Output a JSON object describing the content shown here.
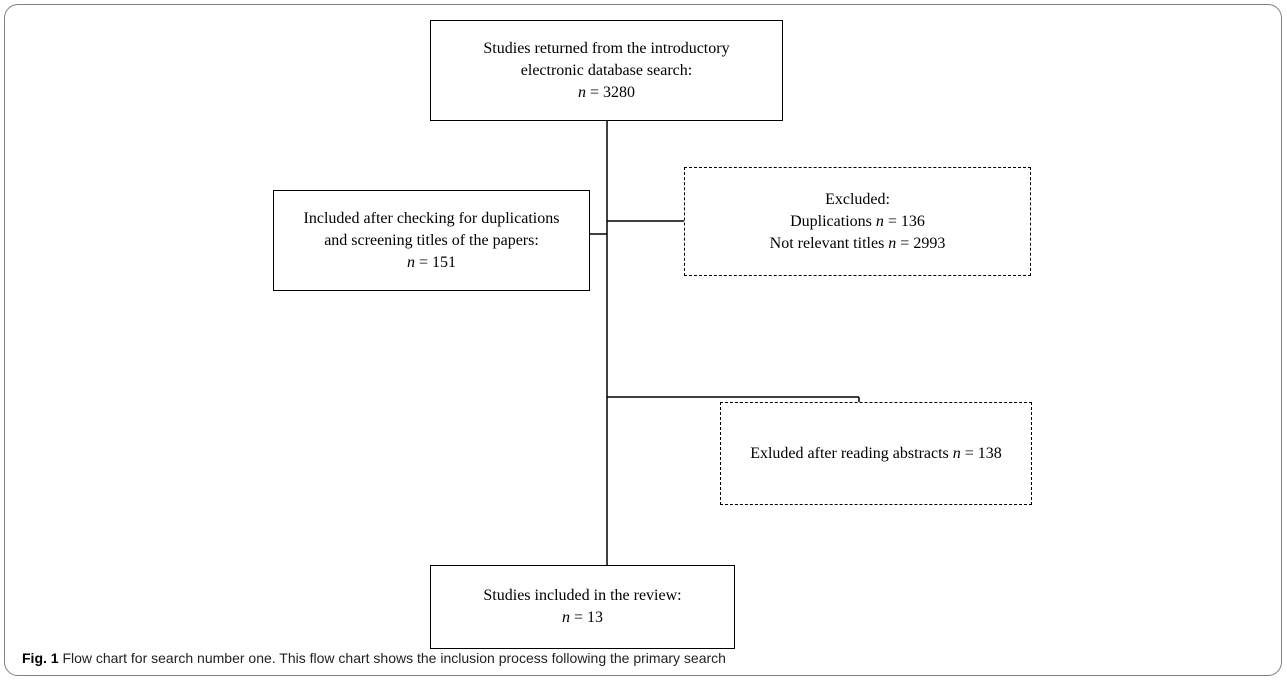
{
  "flowchart": {
    "start": {
      "line1": "Studies returned from the introductory",
      "line2": "electronic database search:",
      "count_label": "n",
      "count_value": " = 3280"
    },
    "excluded_first": {
      "heading": "Excluded:",
      "duplications_label": "Duplications ",
      "duplications_n": "n",
      "duplications_value": " = 136",
      "not_relevant_label": "Not relevant titles ",
      "not_relevant_n": "n",
      "not_relevant_value": " = 2993"
    },
    "included": {
      "line1": "Included after checking for duplications",
      "line2": "and screening titles of the papers:",
      "count_label": "n",
      "count_value": " = 151"
    },
    "excluded_second": {
      "label": "Exluded after reading abstracts ",
      "count_label": "n",
      "count_value": " = 138"
    },
    "final": {
      "line1": "Studies included in the review:",
      "count_label": "n",
      "count_value": " = 13"
    }
  },
  "caption": {
    "label": "Fig. 1",
    "text": " Flow chart for search number one. This flow chart shows the inclusion process following the primary search"
  }
}
